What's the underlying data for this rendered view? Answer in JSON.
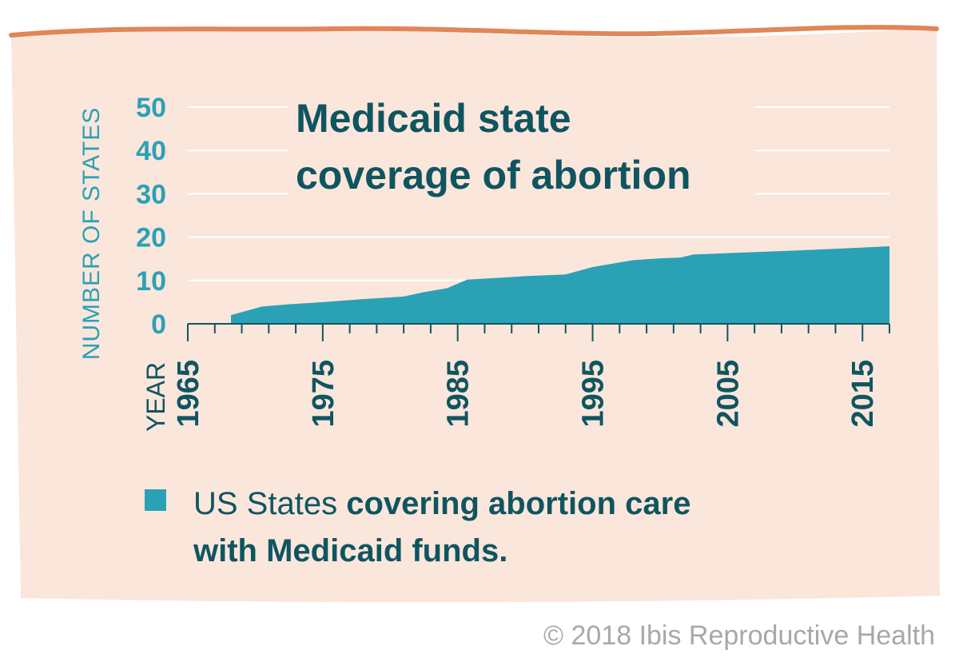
{
  "colors": {
    "panel": "#fbe6dc",
    "top_border": "#e08657",
    "area": "#2ba1b5",
    "dark_teal": "#0f5560",
    "grid": "#ffffff",
    "copyright": "#a8a8a8"
  },
  "chart_data": {
    "type": "area",
    "title": [
      "Medicaid state",
      "coverage of abortion"
    ],
    "ylabel": "NUMBER OF STATES",
    "xlabel": "YEAR",
    "xlim": [
      1965,
      2017
    ],
    "ylim": [
      0,
      50
    ],
    "y_ticks": [
      0,
      10,
      20,
      30,
      40,
      50
    ],
    "x_tick_labels": [
      1965,
      1975,
      1985,
      1995,
      2005,
      2015
    ],
    "grid": true,
    "series": [
      {
        "name": "US States covering abortion care with Medicaid funds.",
        "x": [
          1968.2,
          1970.5,
          1972.5,
          1975.0,
          1978.0,
          1981.0,
          1982.5,
          1984.2,
          1985.7,
          1988.0,
          1990.0,
          1993.0,
          1995.0,
          1998.0,
          2000.0,
          2001.5,
          2002.5,
          2005.0,
          2010.0,
          2015.0,
          2017.0
        ],
        "y": [
          2,
          4,
          4.5,
          5,
          5.7,
          6.3,
          7.3,
          8.2,
          10.2,
          10.6,
          11,
          11.4,
          13.1,
          14.7,
          15.1,
          15.3,
          16,
          16.3,
          16.9,
          17.6,
          17.9
        ]
      }
    ]
  },
  "legend": {
    "line1_regular": "US States ",
    "line1_bold": "covering abortion care",
    "line2_bold": "with Medicaid funds."
  },
  "copyright": "© 2018 Ibis Reproductive Health"
}
